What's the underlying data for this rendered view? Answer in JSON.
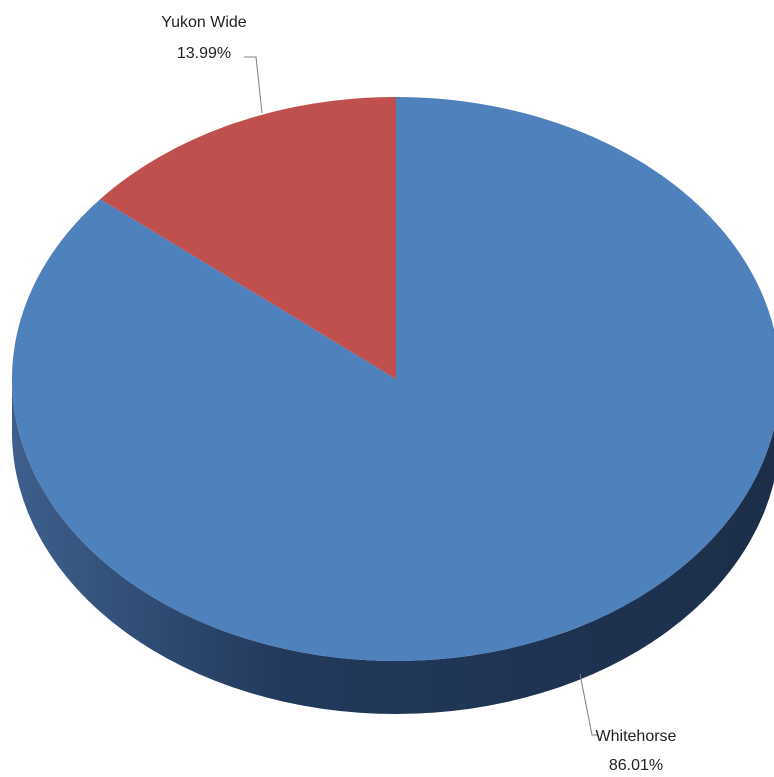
{
  "chart_data": {
    "type": "pie",
    "three_d": true,
    "title": "",
    "legend": "none",
    "slices": [
      {
        "label": "Whitehorse",
        "value": 86.01,
        "value_text": "86.01%",
        "color": "#4F81BD",
        "side_color": "#1F3150"
      },
      {
        "label": "Yukon Wide",
        "value": 13.99,
        "value_text": "13.99%",
        "color": "#C0504D",
        "side_color": "#7A2F2D"
      }
    ]
  }
}
